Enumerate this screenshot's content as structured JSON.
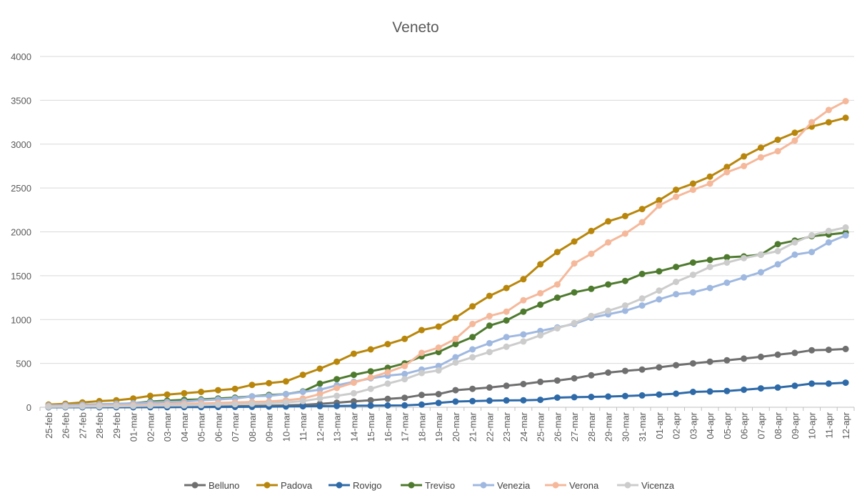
{
  "chart_data": {
    "type": "line",
    "title": "Veneto",
    "xlabel": "",
    "ylabel": "",
    "ylim": [
      0,
      4000
    ],
    "yticks": [
      0,
      500,
      1000,
      1500,
      2000,
      2500,
      3000,
      3500,
      4000
    ],
    "grid": true,
    "legend_position": "bottom",
    "categories": [
      "25-feb",
      "26-feb",
      "27-feb",
      "28-feb",
      "29-feb",
      "01-mar",
      "02-mar",
      "03-mar",
      "04-mar",
      "05-mar",
      "06-mar",
      "07-mar",
      "08-mar",
      "09-mar",
      "10-mar",
      "11-mar",
      "12-mar",
      "13-mar",
      "14-mar",
      "15-mar",
      "16-mar",
      "17-mar",
      "18-mar",
      "19-mar",
      "20-mar",
      "21-mar",
      "22-mar",
      "23-mar",
      "24-mar",
      "25-mar",
      "26-mar",
      "27-mar",
      "28-mar",
      "29-mar",
      "30-mar",
      "31-mar",
      "01-apr",
      "02-apr",
      "03-apr",
      "04-apr",
      "05-apr",
      "06-apr",
      "07-apr",
      "08-apr",
      "09-apr",
      "10-apr",
      "11-apr",
      "12-apr"
    ],
    "series": [
      {
        "name": "Belluno",
        "color": "#6f6f6f",
        "values": [
          2,
          2,
          3,
          3,
          4,
          5,
          6,
          7,
          8,
          9,
          10,
          12,
          15,
          18,
          22,
          28,
          38,
          52,
          68,
          80,
          95,
          108,
          140,
          150,
          195,
          210,
          225,
          245,
          265,
          290,
          305,
          330,
          365,
          395,
          415,
          430,
          455,
          480,
          500,
          520,
          535,
          555,
          575,
          600,
          620,
          650,
          655,
          665
        ]
      },
      {
        "name": "Padova",
        "color": "#b8860b",
        "values": [
          30,
          40,
          55,
          70,
          80,
          100,
          130,
          145,
          160,
          175,
          195,
          210,
          255,
          275,
          295,
          370,
          440,
          520,
          610,
          660,
          720,
          780,
          880,
          920,
          1020,
          1150,
          1270,
          1360,
          1460,
          1630,
          1770,
          1890,
          2010,
          2120,
          2180,
          2260,
          2360,
          2480,
          2550,
          2630,
          2740,
          2860,
          2960,
          3050,
          3130,
          3200,
          3250,
          3300
        ]
      },
      {
        "name": "Rovigo",
        "color": "#2e6aa8",
        "values": [
          0,
          0,
          0,
          0,
          0,
          0,
          1,
          1,
          2,
          2,
          3,
          4,
          5,
          7,
          9,
          11,
          13,
          15,
          17,
          19,
          20,
          21,
          30,
          50,
          65,
          70,
          75,
          78,
          80,
          85,
          110,
          115,
          118,
          122,
          128,
          135,
          145,
          155,
          175,
          180,
          185,
          200,
          215,
          225,
          245,
          270,
          270,
          280
        ]
      },
      {
        "name": "Treviso",
        "color": "#4e7a2e",
        "values": [
          15,
          20,
          25,
          30,
          35,
          45,
          65,
          75,
          85,
          90,
          100,
          110,
          125,
          140,
          150,
          180,
          270,
          320,
          370,
          410,
          450,
          500,
          580,
          630,
          720,
          800,
          930,
          990,
          1090,
          1170,
          1250,
          1310,
          1350,
          1400,
          1440,
          1520,
          1550,
          1600,
          1650,
          1680,
          1710,
          1720,
          1740,
          1860,
          1900,
          1950,
          1970,
          1990
        ]
      },
      {
        "name": "Venezia",
        "color": "#9fb8e0",
        "values": [
          20,
          25,
          30,
          35,
          40,
          45,
          55,
          60,
          65,
          80,
          90,
          100,
          125,
          130,
          150,
          175,
          200,
          250,
          290,
          330,
          360,
          380,
          430,
          470,
          570,
          660,
          730,
          800,
          830,
          870,
          910,
          950,
          1020,
          1060,
          1100,
          1160,
          1230,
          1290,
          1310,
          1360,
          1420,
          1480,
          1540,
          1630,
          1740,
          1770,
          1880,
          1960
        ]
      },
      {
        "name": "Verona",
        "color": "#f5b89a",
        "values": [
          10,
          12,
          15,
          18,
          20,
          25,
          30,
          35,
          40,
          45,
          50,
          55,
          60,
          65,
          80,
          100,
          150,
          220,
          280,
          340,
          400,
          470,
          620,
          680,
          780,
          950,
          1040,
          1090,
          1220,
          1300,
          1400,
          1640,
          1750,
          1880,
          1980,
          2110,
          2300,
          2400,
          2480,
          2550,
          2680,
          2750,
          2850,
          2920,
          3040,
          3250,
          3390,
          3490
        ]
      },
      {
        "name": "Vicenza",
        "color": "#cccccc",
        "values": [
          5,
          6,
          8,
          10,
          12,
          15,
          18,
          20,
          22,
          25,
          30,
          35,
          40,
          45,
          55,
          70,
          100,
          130,
          160,
          210,
          270,
          320,
          390,
          420,
          510,
          570,
          630,
          690,
          750,
          820,
          900,
          960,
          1040,
          1100,
          1160,
          1240,
          1330,
          1430,
          1510,
          1600,
          1650,
          1700,
          1740,
          1780,
          1880,
          1960,
          2010,
          2050
        ]
      }
    ]
  }
}
